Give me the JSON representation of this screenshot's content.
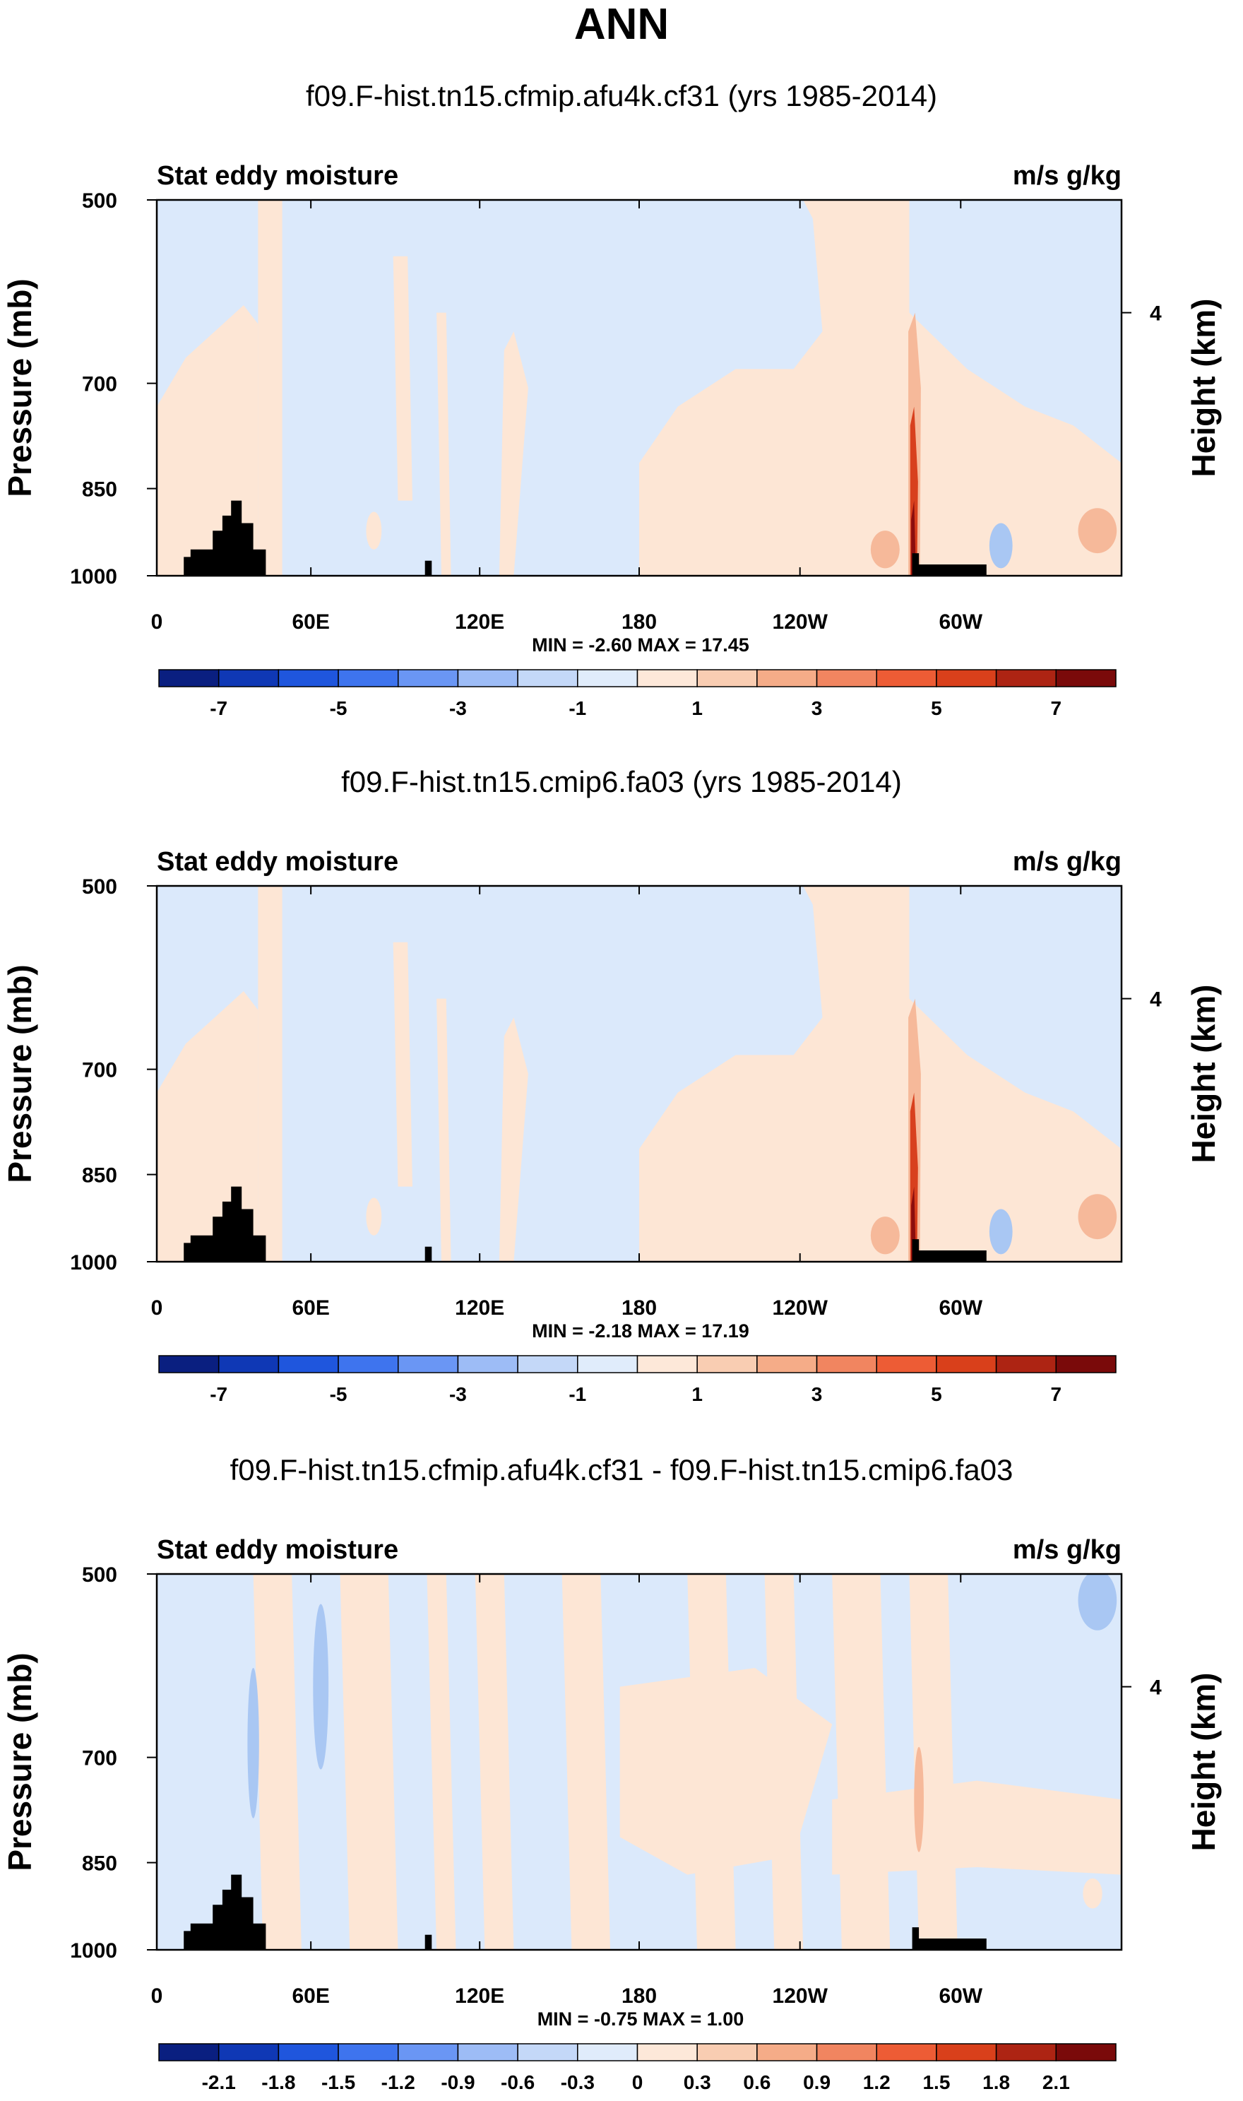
{
  "figure_title": "ANN",
  "colors": {
    "blue_light": "#dbe9fb",
    "blue_mid": "#a9c7f3",
    "orange_light": "#fde6d5",
    "orange_mid": "#f6b99a",
    "red_strong": "#d8401e",
    "red_dark": "#8b0d0d",
    "land": "#000000"
  },
  "chart_data": [
    {
      "type": "heatmap",
      "title": "f09.F-hist.tn15.cfmip.afu4k.cf31 (yrs 1985-2014)",
      "variable": "Stat eddy moisture",
      "units": "m/s g/kg",
      "ylabel": "Pressure (mb)",
      "y2label": "Height (km)",
      "x_ticks": [
        "0",
        "60E",
        "120E",
        "180",
        "120W",
        "60W"
      ],
      "y_ticks": [
        "500",
        "700",
        "850",
        "1000"
      ],
      "y2_ticks": [
        "4"
      ],
      "min_max_text": "MIN =  -2.60   MAX =  17.45",
      "colorbar_labels": [
        "-7",
        "-5",
        "-3",
        "-1",
        "1",
        "3",
        "5",
        "7"
      ],
      "colorbar_colors": [
        "#0a1f80",
        "#0f38b5",
        "#1f56dd",
        "#3e74ee",
        "#6a96f4",
        "#9dbcf6",
        "#c4d8f8",
        "#e0ecfb",
        "#fde8d9",
        "#f9cdb2",
        "#f5ac88",
        "#f18560",
        "#ed5c35",
        "#d9401b",
        "#ad2413",
        "#7a0a0a"
      ]
    },
    {
      "type": "heatmap",
      "title": "f09.F-hist.tn15.cmip6.fa03 (yrs 1985-2014)",
      "variable": "Stat eddy moisture",
      "units": "m/s g/kg",
      "ylabel": "Pressure (mb)",
      "y2label": "Height (km)",
      "x_ticks": [
        "0",
        "60E",
        "120E",
        "180",
        "120W",
        "60W"
      ],
      "y_ticks": [
        "500",
        "700",
        "850",
        "1000"
      ],
      "y2_ticks": [
        "4"
      ],
      "min_max_text": "MIN =  -2.18   MAX =  17.19",
      "colorbar_labels": [
        "-7",
        "-5",
        "-3",
        "-1",
        "1",
        "3",
        "5",
        "7"
      ],
      "colorbar_colors": [
        "#0a1f80",
        "#0f38b5",
        "#1f56dd",
        "#3e74ee",
        "#6a96f4",
        "#9dbcf6",
        "#c4d8f8",
        "#e0ecfb",
        "#fde8d9",
        "#f9cdb2",
        "#f5ac88",
        "#f18560",
        "#ed5c35",
        "#d9401b",
        "#ad2413",
        "#7a0a0a"
      ]
    },
    {
      "type": "heatmap",
      "title": "f09.F-hist.tn15.cfmip.afu4k.cf31 - f09.F-hist.tn15.cmip6.fa03",
      "variable": "Stat eddy moisture",
      "units": "m/s g/kg",
      "ylabel": "Pressure (mb)",
      "y2label": "Height (km)",
      "x_ticks": [
        "0",
        "60E",
        "120E",
        "180",
        "120W",
        "60W"
      ],
      "y_ticks": [
        "500",
        "700",
        "850",
        "1000"
      ],
      "y2_ticks": [
        "4"
      ],
      "min_max_text": "MIN =  -0.75   MAX =   1.00",
      "colorbar_labels": [
        "-2.1",
        "-1.8",
        "-1.5",
        "-1.2",
        "-0.9",
        "-0.6",
        "-0.3",
        "0",
        "0.3",
        "0.6",
        "0.9",
        "1.2",
        "1.5",
        "1.8",
        "2.1"
      ],
      "colorbar_colors": [
        "#0a1f80",
        "#0f38b5",
        "#1f56dd",
        "#3e74ee",
        "#6a96f4",
        "#9dbcf6",
        "#c4d8f8",
        "#e0ecfb",
        "#fde8d9",
        "#f9cdb2",
        "#f5ac88",
        "#f18560",
        "#ed5c35",
        "#d9401b",
        "#ad2413",
        "#7a0a0a"
      ]
    }
  ]
}
